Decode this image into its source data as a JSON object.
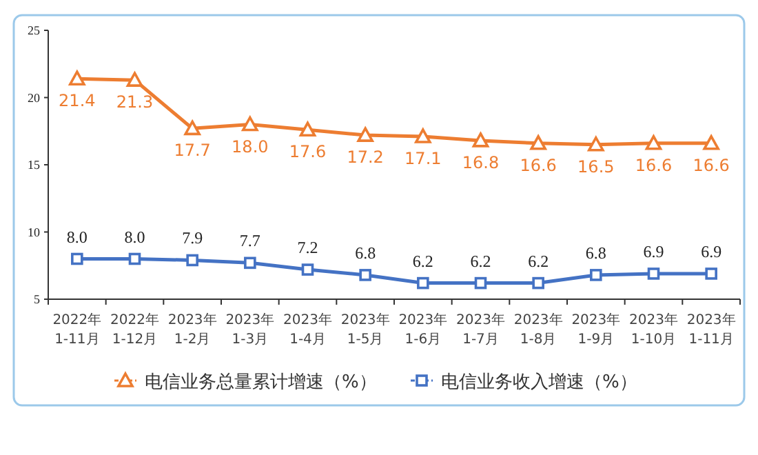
{
  "chart_data": {
    "type": "line",
    "categories": [
      "2022年\n1-11月",
      "2022年\n1-12月",
      "2023年\n1-2月",
      "2023年\n1-3月",
      "2023年\n1-4月",
      "2023年\n1-5月",
      "2023年\n1-6月",
      "2023年\n1-7月",
      "2023年\n1-8月",
      "2023年\n1-9月",
      "2023年\n1-10月",
      "2023年\n1-11月"
    ],
    "series": [
      {
        "name": "电信业务总量累计增速（%）",
        "color": "#ed7d31",
        "marker": "triangle",
        "values": [
          21.4,
          21.3,
          17.7,
          18.0,
          17.6,
          17.2,
          17.1,
          16.8,
          16.6,
          16.5,
          16.6,
          16.6
        ],
        "value_labels": [
          "21.4",
          "21.3",
          "17.7",
          "18.0",
          "17.6",
          "17.2",
          "17.1",
          "16.8",
          "16.6",
          "16.5",
          "16.6",
          "16.6"
        ]
      },
      {
        "name": "电信业务收入增速（%）",
        "color": "#4472c4",
        "marker": "square",
        "values": [
          8.0,
          8.0,
          7.9,
          7.7,
          7.2,
          6.8,
          6.2,
          6.2,
          6.2,
          6.8,
          6.9,
          6.9
        ],
        "value_labels": [
          "8.0",
          "8.0",
          "7.9",
          "7.7",
          "7.2",
          "6.8",
          "6.2",
          "6.2",
          "6.2",
          "6.8",
          "6.9",
          "6.9"
        ]
      }
    ],
    "ylim": [
      5,
      25
    ],
    "yticks": [
      5,
      10,
      15,
      20,
      25
    ],
    "legend": "bottom"
  }
}
